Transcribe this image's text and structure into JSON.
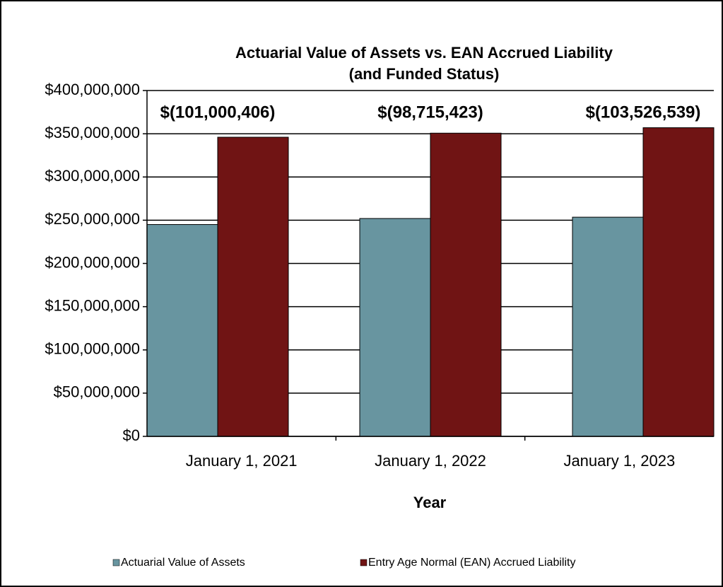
{
  "chart_data": {
    "type": "bar",
    "title": "Actuarial Value of Assets vs. EAN Accrued Liability",
    "subtitle": "(and Funded Status)",
    "x_label": "Year",
    "categories": [
      "January 1, 2021",
      "January 1, 2022",
      "January 1, 2023"
    ],
    "series": [
      {
        "name": "Actuarial Value of Assets",
        "color": "#6895a0",
        "values": [
          245000000,
          252000000,
          253500000
        ]
      },
      {
        "name": "Entry Age Normal (EAN) Accrued Liability",
        "color": "#701414",
        "values": [
          346000000,
          350700000,
          357000000
        ]
      }
    ],
    "annotations": [
      "$(101,000,406)",
      "$(98,715,423)",
      "$(103,526,539)"
    ],
    "ylim": [
      0,
      400000000
    ],
    "yticks": [
      {
        "value": 0,
        "label": "$0"
      },
      {
        "value": 50000000,
        "label": "$50,000,000"
      },
      {
        "value": 100000000,
        "label": "$100,000,000"
      },
      {
        "value": 150000000,
        "label": "$150,000,000"
      },
      {
        "value": 200000000,
        "label": "$200,000,000"
      },
      {
        "value": 250000000,
        "label": "$250,000,000"
      },
      {
        "value": 300000000,
        "label": "$300,000,000"
      },
      {
        "value": 350000000,
        "label": "$350,000,000"
      },
      {
        "value": 400000000,
        "label": "$400,000,000"
      }
    ],
    "grid": true,
    "legend": "bottom"
  }
}
